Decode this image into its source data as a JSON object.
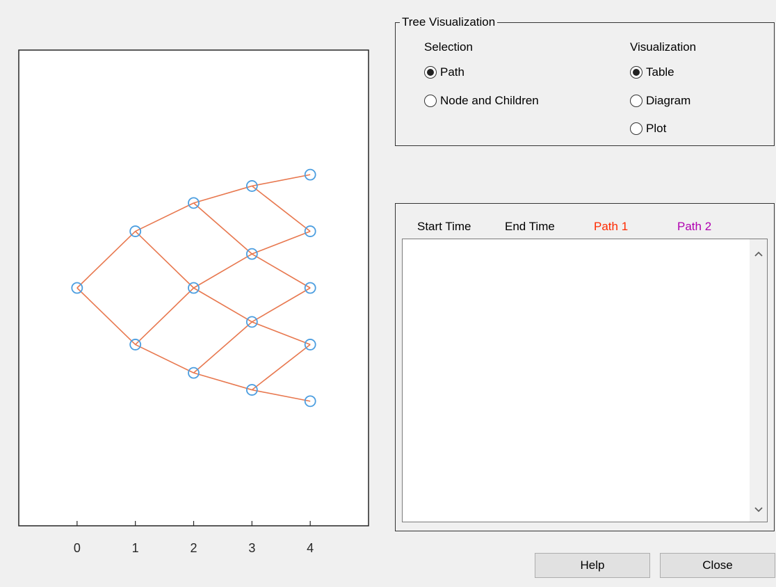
{
  "tree_plot": {
    "x_ticks": [
      "0",
      "1",
      "2",
      "3",
      "4"
    ],
    "colors": {
      "edge": "#e8784f",
      "node": "#4c9ee0",
      "axes": "#262626"
    },
    "xlim": [
      -1,
      5
    ],
    "ylim": [
      -4.2,
      4.2
    ],
    "nodes": [
      {
        "x": 0,
        "y": 0
      },
      {
        "x": 1,
        "y": 1
      },
      {
        "x": 1,
        "y": -1
      },
      {
        "x": 2,
        "y": 1.5
      },
      {
        "x": 2,
        "y": 0
      },
      {
        "x": 2,
        "y": -1.5
      },
      {
        "x": 3,
        "y": 1.8
      },
      {
        "x": 3,
        "y": 0.6
      },
      {
        "x": 3,
        "y": -0.6
      },
      {
        "x": 3,
        "y": -1.8
      },
      {
        "x": 4,
        "y": 2
      },
      {
        "x": 4,
        "y": 1
      },
      {
        "x": 4,
        "y": 0
      },
      {
        "x": 4,
        "y": -1
      },
      {
        "x": 4,
        "y": -2
      }
    ],
    "edges": [
      [
        0,
        1
      ],
      [
        0,
        2
      ],
      [
        1,
        3
      ],
      [
        1,
        4
      ],
      [
        2,
        4
      ],
      [
        2,
        5
      ],
      [
        3,
        6
      ],
      [
        3,
        7
      ],
      [
        4,
        7
      ],
      [
        4,
        8
      ],
      [
        5,
        8
      ],
      [
        5,
        9
      ],
      [
        6,
        10
      ],
      [
        6,
        11
      ],
      [
        7,
        11
      ],
      [
        7,
        12
      ],
      [
        8,
        12
      ],
      [
        8,
        13
      ],
      [
        9,
        13
      ],
      [
        9,
        14
      ]
    ]
  },
  "viz_panel": {
    "title": "Tree Visualization",
    "selection": {
      "label": "Selection",
      "options": [
        "Path",
        "Node and Children"
      ],
      "selected": "Path"
    },
    "visualization": {
      "label": "Visualization",
      "options": [
        "Table",
        "Diagram",
        "Plot"
      ],
      "selected": "Table"
    }
  },
  "table": {
    "columns": [
      {
        "label": "Start Time",
        "color": "#000000"
      },
      {
        "label": "End Time",
        "color": "#000000"
      },
      {
        "label": "Path 1",
        "color": "#ff2a00"
      },
      {
        "label": "Path 2",
        "color": "#b000b0"
      }
    ],
    "rows": []
  },
  "buttons": {
    "help_label": "Help",
    "close_label": "Close"
  }
}
